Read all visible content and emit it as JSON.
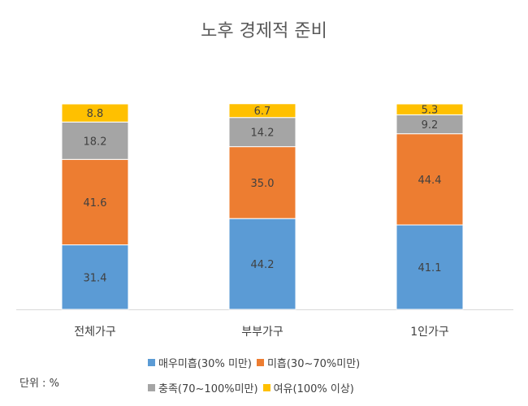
{
  "chart_data": {
    "type": "bar",
    "stacked": true,
    "title": "노후 경제적 준비",
    "categories": [
      "전체가구",
      "부부가구",
      "1인가구"
    ],
    "series": [
      {
        "name": "매우미흡(30% 미만)",
        "color": "#5B9BD5",
        "values": [
          31.4,
          44.2,
          41.1
        ]
      },
      {
        "name": "미흡(30~70%미만)",
        "color": "#ED7D31",
        "values": [
          41.6,
          35.0,
          44.4
        ]
      },
      {
        "name": "충족(70~100%미만)",
        "color": "#A5A5A5",
        "values": [
          18.2,
          14.2,
          9.2
        ]
      },
      {
        "name": "여유(100% 이상)",
        "color": "#FFC000",
        "values": [
          8.8,
          6.7,
          5.3
        ]
      }
    ],
    "ylim": [
      0,
      100
    ],
    "grid": false,
    "legend_position": "bottom"
  },
  "unit_note": "단위 : %"
}
